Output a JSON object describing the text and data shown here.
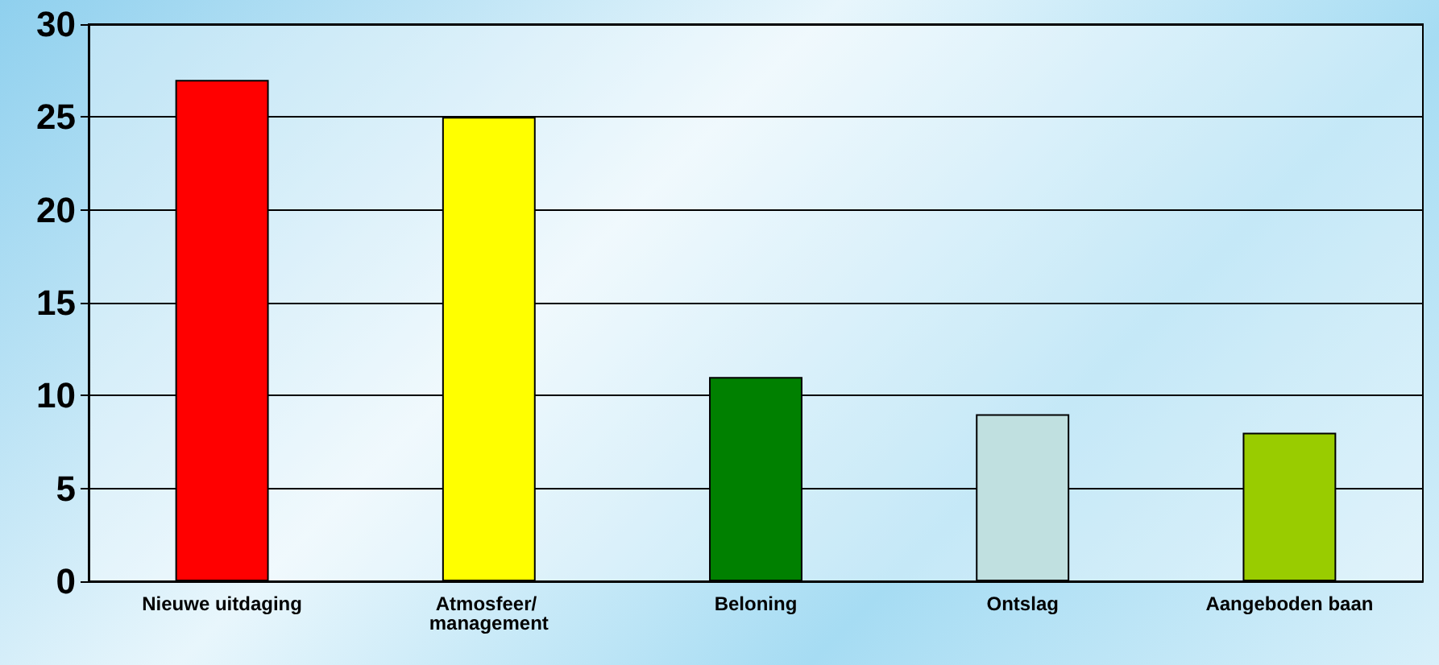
{
  "chart_data": {
    "type": "bar",
    "categories": [
      "Nieuwe uitdaging",
      "Atmosfeer/ management",
      "Beloning",
      "Ontslag",
      "Aangeboden baan"
    ],
    "values": [
      27,
      25,
      11,
      9,
      8
    ],
    "colors": [
      "#ff0000",
      "#ffff00",
      "#008000",
      "#c0e0e0",
      "#99cc00"
    ],
    "ylim": [
      0,
      30
    ],
    "yticks": [
      0,
      5,
      10,
      15,
      20,
      25,
      30
    ],
    "grid": true
  }
}
